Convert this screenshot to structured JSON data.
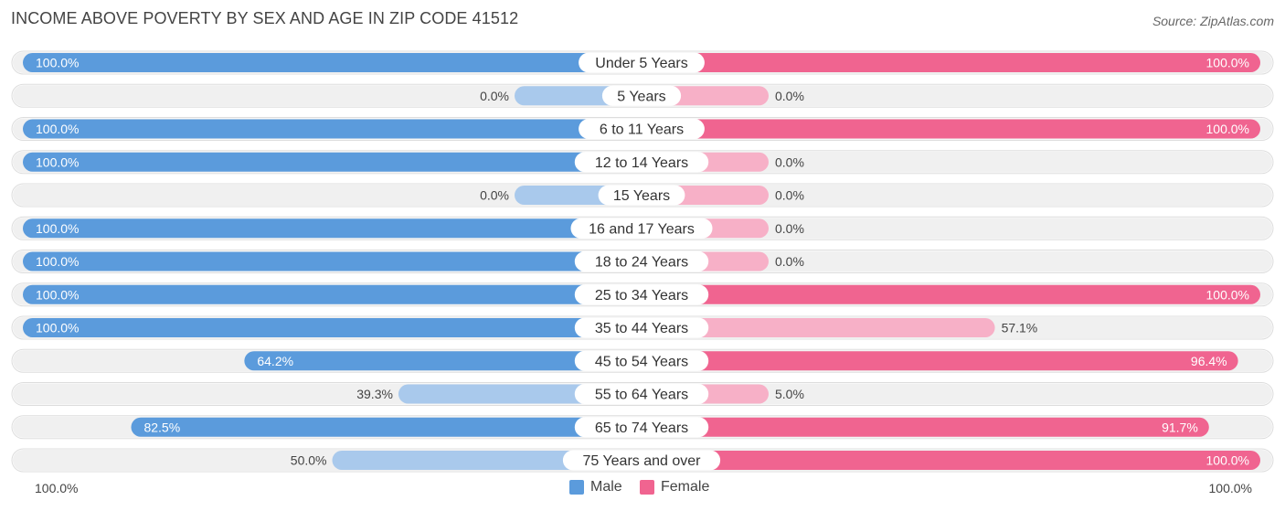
{
  "title": "INCOME ABOVE POVERTY BY SEX AND AGE IN ZIP CODE 41512",
  "source": "Source: ZipAtlas.com",
  "colors": {
    "male_full": "#5b9bdc",
    "male_light": "#a9c9ec",
    "female_full": "#f06490",
    "female_light": "#f7b0c7",
    "row_bg": "#f0f0f0"
  },
  "legend": {
    "male_label": "Male",
    "female_label": "Female",
    "axis_left": "100.0%",
    "axis_right": "100.0%"
  },
  "chart_data": {
    "type": "bar",
    "orientation": "horizontal-diverging",
    "title": "INCOME ABOVE POVERTY BY SEX AND AGE IN ZIP CODE 41512",
    "xlim": [
      0,
      100
    ],
    "categories": [
      "Under 5 Years",
      "5 Years",
      "6 to 11 Years",
      "12 to 14 Years",
      "15 Years",
      "16 and 17 Years",
      "18 to 24 Years",
      "25 to 34 Years",
      "35 to 44 Years",
      "45 to 54 Years",
      "55 to 64 Years",
      "65 to 74 Years",
      "75 Years and over"
    ],
    "series": [
      {
        "name": "Male",
        "values": [
          100.0,
          0.0,
          100.0,
          100.0,
          0.0,
          100.0,
          100.0,
          100.0,
          100.0,
          64.2,
          39.3,
          82.5,
          50.0
        ]
      },
      {
        "name": "Female",
        "values": [
          100.0,
          0.0,
          100.0,
          0.0,
          0.0,
          0.0,
          0.0,
          100.0,
          57.1,
          96.4,
          5.0,
          91.7,
          100.0
        ]
      }
    ],
    "labels": {
      "Male": [
        "100.0%",
        "0.0%",
        "100.0%",
        "100.0%",
        "0.0%",
        "100.0%",
        "100.0%",
        "100.0%",
        "100.0%",
        "64.2%",
        "39.3%",
        "82.5%",
        "50.0%"
      ],
      "Female": [
        "100.0%",
        "0.0%",
        "100.0%",
        "0.0%",
        "0.0%",
        "0.0%",
        "0.0%",
        "100.0%",
        "57.1%",
        "96.4%",
        "5.0%",
        "91.7%",
        "100.0%"
      ]
    }
  }
}
